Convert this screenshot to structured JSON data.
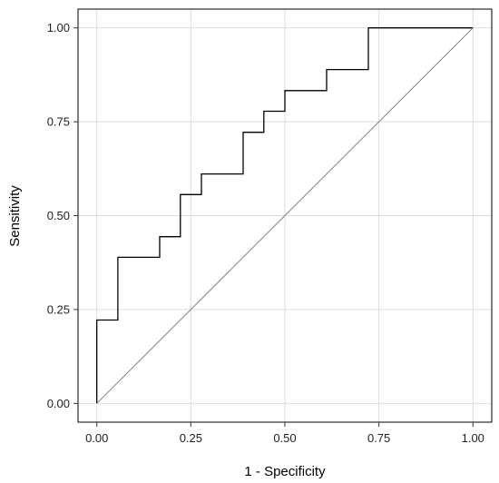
{
  "chart_data": {
    "type": "line",
    "title": "",
    "xlabel": "1 - Specificity",
    "ylabel": "Sensitivity",
    "xlim": [
      -0.05,
      1.05
    ],
    "ylim": [
      -0.05,
      1.05
    ],
    "grid": true,
    "x_ticks": [
      0,
      0.25,
      0.5,
      0.75,
      1
    ],
    "x_tick_labels": [
      "0.00",
      "0.25",
      "0.50",
      "0.75",
      "1.00"
    ],
    "y_ticks": [
      0,
      0.25,
      0.5,
      0.75,
      1
    ],
    "y_tick_labels": [
      "0.00",
      "0.25",
      "0.50",
      "0.75",
      "1.00"
    ],
    "series": [
      {
        "style": "step",
        "color": "#000000",
        "x": [
          0,
          0,
          0.056,
          0.056,
          0.167,
          0.167,
          0.222,
          0.222,
          0.278,
          0.278,
          0.389,
          0.389,
          0.444,
          0.444,
          0.5,
          0.5,
          0.611,
          0.611,
          0.722,
          0.722,
          1.0
        ],
        "y": [
          0,
          0.222,
          0.222,
          0.389,
          0.389,
          0.444,
          0.444,
          0.556,
          0.556,
          0.611,
          0.611,
          0.722,
          0.722,
          0.778,
          0.778,
          0.833,
          0.833,
          0.889,
          0.889,
          1.0,
          1.0
        ]
      },
      {
        "style": "reference",
        "color": "#808080",
        "x": [
          0,
          1
        ],
        "y": [
          0,
          1
        ]
      }
    ]
  }
}
